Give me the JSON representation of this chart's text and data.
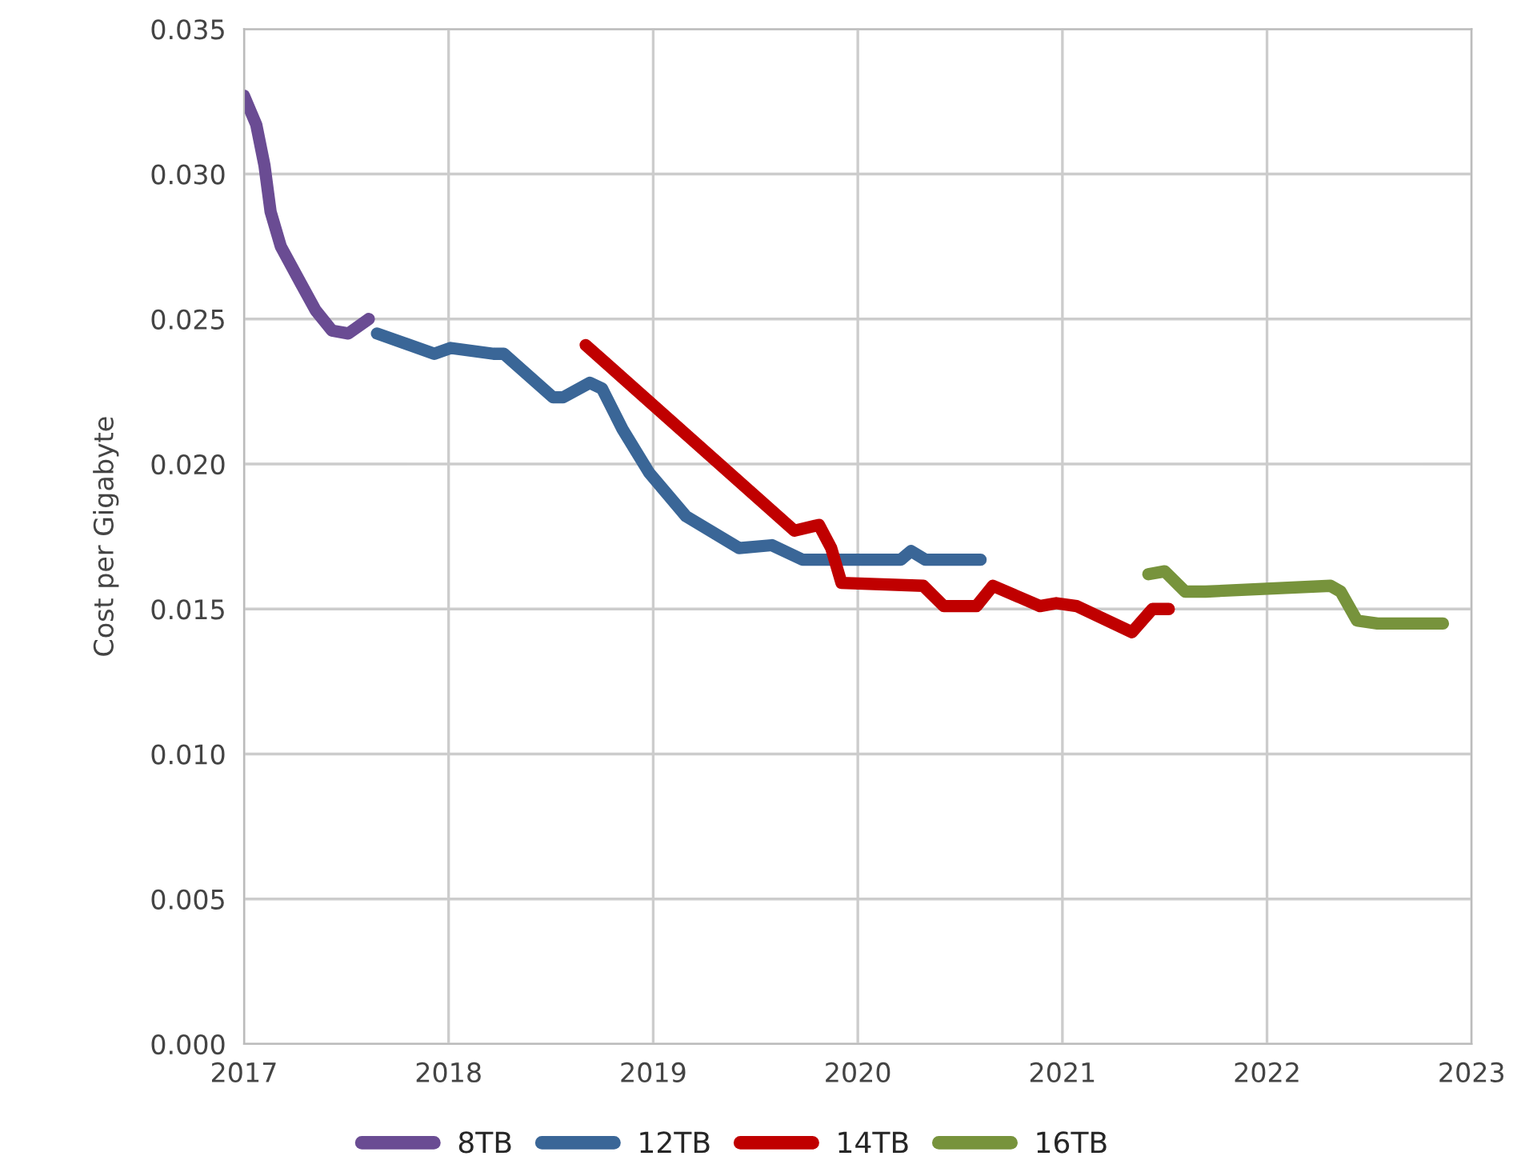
{
  "chart_data": {
    "type": "line",
    "ylabel": "Cost per Gigabyte",
    "xlim": [
      2017,
      2023
    ],
    "xticks": [
      2017,
      2018,
      2019,
      2020,
      2021,
      2022,
      2023
    ],
    "ylim": [
      0,
      0.035
    ],
    "yticks": [
      {
        "value": 0,
        "label": "0.000"
      },
      {
        "value": 0.005,
        "label": "0.005"
      },
      {
        "value": 0.01,
        "label": "0.010"
      },
      {
        "value": 0.015,
        "label": "0.015"
      },
      {
        "value": 0.02,
        "label": "0.020"
      },
      {
        "value": 0.025,
        "label": "0.025"
      },
      {
        "value": 0.03,
        "label": "0.030"
      },
      {
        "value": 0.035,
        "label": "0.035"
      }
    ],
    "grid": true,
    "legend": "bottom",
    "marker": "none",
    "line_style": "solid",
    "series": [
      {
        "name": "8TB",
        "color": "#6a4c93",
        "x": [
          2017.0,
          2017.06,
          2017.1,
          2017.13,
          2017.18,
          2017.28,
          2017.35,
          2017.43,
          2017.51,
          2017.61
        ],
        "values": [
          0.0327,
          0.0317,
          0.0303,
          0.0287,
          0.0275,
          0.0262,
          0.0253,
          0.0246,
          0.0245,
          0.025
        ]
      },
      {
        "name": "12TB",
        "color": "#3a6697",
        "x": [
          2017.65,
          2017.93,
          2018.01,
          2018.22,
          2018.27,
          2018.51,
          2018.56,
          2018.69,
          2018.75,
          2018.85,
          2018.98,
          2019.16,
          2019.42,
          2019.58,
          2019.73,
          2020.21,
          2020.26,
          2020.33,
          2020.6
        ],
        "values": [
          0.0245,
          0.0238,
          0.024,
          0.0238,
          0.0238,
          0.0223,
          0.0223,
          0.0228,
          0.0226,
          0.0212,
          0.0197,
          0.0182,
          0.0171,
          0.0172,
          0.0167,
          0.0167,
          0.017,
          0.0167,
          0.0167
        ]
      },
      {
        "name": "14TB",
        "color": "#c00000",
        "x": [
          2018.67,
          2019.69,
          2019.81,
          2019.87,
          2019.92,
          2020.32,
          2020.42,
          2020.58,
          2020.66,
          2020.89,
          2020.97,
          2021.07,
          2021.34,
          2021.39,
          2021.44,
          2021.52
        ],
        "values": [
          0.0241,
          0.0177,
          0.0179,
          0.0171,
          0.0159,
          0.0158,
          0.0151,
          0.0151,
          0.0158,
          0.0151,
          0.0152,
          0.0151,
          0.0142,
          0.0146,
          0.015,
          0.015
        ]
      },
      {
        "name": "16TB",
        "color": "#77933c",
        "x": [
          2021.42,
          2021.5,
          2021.6,
          2021.7,
          2022.31,
          2022.36,
          2022.44,
          2022.54,
          2022.86
        ],
        "values": [
          0.0162,
          0.0163,
          0.0156,
          0.0156,
          0.0158,
          0.0156,
          0.0146,
          0.0145,
          0.0145
        ]
      }
    ]
  }
}
